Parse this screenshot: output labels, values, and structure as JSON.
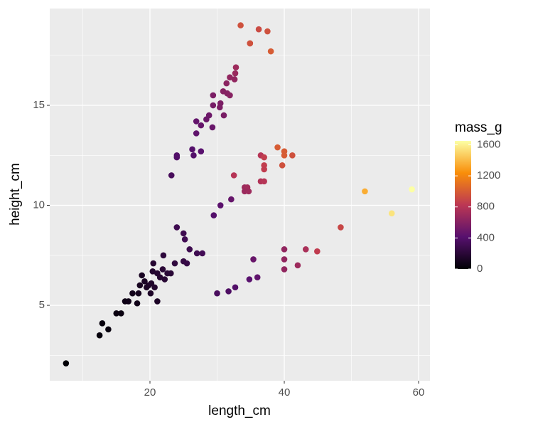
{
  "chart_data": {
    "type": "scatter",
    "x_label": "length_cm",
    "y_label": "height_cm",
    "x": [
      7.5,
      12.5,
      12.9,
      13.8,
      15.0,
      15.7,
      16.3,
      16.8,
      17.4,
      18.1,
      18.3,
      18.5,
      18.8,
      19.2,
      19.5,
      19.8,
      20.1,
      20.2,
      20.4,
      20.5,
      20.7,
      21.1,
      21.1,
      21.5,
      21.9,
      22.0,
      22.2,
      22.6,
      23.1,
      23.7,
      24.0,
      25.0,
      25.2,
      25.0,
      25.5,
      25.9,
      27.0,
      27.8,
      23.2,
      24.0,
      24.0,
      26.3,
      26.5,
      27.6,
      26.9,
      26.9,
      27.6,
      28.4,
      28.8,
      29.3,
      29.4,
      29.4,
      30.4,
      30.5,
      31.0,
      30.9,
      31.4,
      31.5,
      31.9,
      31.9,
      32.6,
      32.7,
      32.8,
      29.5,
      30.0,
      30.5,
      31.7,
      32.1,
      32.7,
      32.5,
      34.1,
      34.5,
      34.1,
      34.7,
      34.8,
      35.4,
      36.0,
      36.5,
      37.0,
      36.5,
      37.0,
      37.0,
      37.0,
      39.0,
      39.7,
      40.0,
      40.0,
      41.2,
      40.0,
      40.0,
      40.0,
      42.0,
      43.2,
      44.9,
      33.5,
      34.9,
      34.9,
      36.2,
      37.5,
      38.0,
      48.4,
      52.0,
      56.0,
      59.0
    ],
    "y": [
      2.1,
      3.5,
      4.1,
      3.8,
      4.6,
      4.6,
      5.2,
      5.2,
      5.6,
      5.1,
      5.6,
      6.0,
      6.5,
      6.2,
      5.9,
      6.0,
      5.6,
      6.1,
      6.7,
      7.1,
      5.9,
      6.6,
      5.2,
      6.4,
      6.8,
      7.5,
      6.3,
      6.6,
      6.6,
      7.1,
      8.9,
      8.6,
      8.3,
      7.2,
      7.1,
      7.8,
      7.6,
      7.6,
      11.5,
      12.4,
      12.5,
      12.8,
      12.5,
      12.7,
      14.2,
      13.6,
      14.0,
      14.3,
      14.5,
      13.9,
      15.5,
      15.0,
      14.9,
      15.1,
      14.5,
      15.7,
      16.1,
      15.6,
      15.5,
      16.4,
      16.3,
      16.6,
      16.9,
      9.5,
      5.6,
      10.0,
      5.7,
      10.3,
      5.9,
      11.5,
      10.9,
      10.9,
      10.7,
      10.7,
      6.3,
      7.3,
      6.4,
      11.2,
      11.2,
      12.5,
      12.4,
      12.0,
      11.8,
      12.9,
      12.0,
      12.7,
      12.5,
      12.5,
      7.8,
      7.3,
      6.8,
      7.0,
      7.8,
      7.7,
      19.0,
      18.1,
      18.1,
      18.8,
      18.7,
      17.7,
      8.9,
      10.7,
      9.6,
      10.8
    ],
    "mass": [
      6,
      30,
      40,
      40,
      50,
      50,
      70,
      80,
      90,
      80,
      100,
      110,
      120,
      130,
      130,
      140,
      140,
      150,
      170,
      180,
      160,
      180,
      140,
      180,
      200,
      220,
      190,
      200,
      200,
      230,
      300,
      300,
      310,
      250,
      260,
      290,
      300,
      320,
      340,
      390,
      390,
      400,
      400,
      420,
      460,
      450,
      470,
      490,
      500,
      480,
      560,
      540,
      560,
      560,
      550,
      600,
      620,
      600,
      610,
      650,
      650,
      680,
      700,
      400,
      350,
      430,
      370,
      470,
      390,
      800,
      700,
      720,
      690,
      700,
      420,
      480,
      450,
      780,
      800,
      800,
      860,
      860,
      850,
      1000,
      950,
      1000,
      1000,
      950,
      650,
      650,
      650,
      700,
      750,
      850,
      950,
      950,
      950,
      920,
      950,
      1000,
      900,
      1350,
      1550,
      1650
    ],
    "color_title": "mass_g",
    "colormap": [
      "#000004",
      "#57106e",
      "#bc3754",
      "#f98e09",
      "#fcffa4"
    ],
    "clim": [
      0,
      1650
    ],
    "cticks": [
      0,
      400,
      800,
      1200,
      1600
    ],
    "xlim": [
      5.08,
      61.69
    ],
    "ylim": [
      1.23,
      19.84
    ],
    "xticks": [
      20,
      40,
      60
    ],
    "yticks": [
      5,
      10,
      15
    ],
    "xminor": [
      10,
      30,
      50
    ],
    "yminor": [
      2.5,
      7.5,
      12.5,
      17.5
    ],
    "grid": true,
    "panel_color": "#ebebeb"
  }
}
